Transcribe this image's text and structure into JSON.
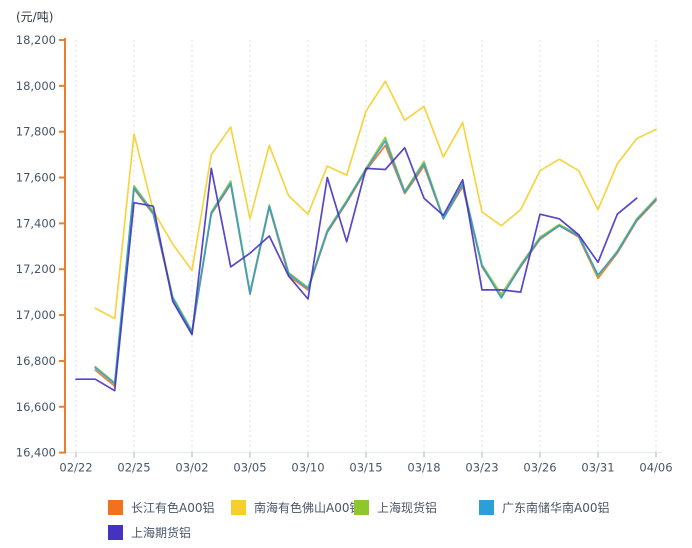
{
  "chart_data": {
    "type": "line",
    "unit_label": "(元/吨)",
    "ylim": [
      16400,
      18200
    ],
    "y_ticks": [
      16400,
      16600,
      16800,
      17000,
      17200,
      17400,
      17600,
      17800,
      18000,
      18200
    ],
    "y_tick_labels": [
      "16,400",
      "16,600",
      "16,800",
      "17,000",
      "17,200",
      "17,400",
      "17,600",
      "17,800",
      "18,000",
      "18,200"
    ],
    "x": [
      "02/22",
      "02/23",
      "02/24",
      "02/25",
      "02/26",
      "03/01",
      "03/02",
      "03/03",
      "03/04",
      "03/05",
      "03/08",
      "03/09",
      "03/10",
      "03/11",
      "03/12",
      "03/15",
      "03/16",
      "03/17",
      "03/18",
      "03/19",
      "03/22",
      "03/23",
      "03/24",
      "03/25",
      "03/26",
      "03/29",
      "03/30",
      "03/31",
      "04/01",
      "04/02",
      "04/06"
    ],
    "x_shown_tick_indices": [
      0,
      3,
      6,
      9,
      12,
      15,
      18,
      21,
      24,
      27,
      30
    ],
    "x_shown_tick_labels": [
      "02/22",
      "02/25",
      "03/02",
      "03/05",
      "03/10",
      "03/15",
      "03/18",
      "03/23",
      "03/26",
      "03/31",
      "04/06"
    ],
    "grid": "vertical-dashed",
    "legend_position": "bottom",
    "series": [
      {
        "name": "长江有色A00铝",
        "color": "#f2711d",
        "values": [
          null,
          16760,
          16690,
          17550,
          17440,
          17070,
          16920,
          17440,
          17570,
          17090,
          17470,
          17170,
          17110,
          17360,
          17490,
          17630,
          17740,
          17530,
          17650,
          17420,
          17560,
          17210,
          17080,
          17210,
          17330,
          17390,
          17340,
          17160,
          17270,
          17410,
          17500
        ]
      },
      {
        "name": "南海有色佛山A00铝",
        "color": "#f6cf2e",
        "values": [
          null,
          17030,
          16985,
          17790,
          17455,
          17310,
          17195,
          17700,
          17820,
          17420,
          17740,
          17520,
          17440,
          17650,
          17610,
          17890,
          18020,
          17850,
          17910,
          17690,
          17840,
          17450,
          17390,
          17460,
          17630,
          17680,
          17630,
          17460,
          17660,
          17770,
          17810
        ]
      },
      {
        "name": "上海现货铝",
        "color": "#8fc62b",
        "values": [
          null,
          16775,
          16705,
          17565,
          17450,
          17080,
          16930,
          17450,
          17585,
          17100,
          17480,
          17185,
          17120,
          17370,
          17500,
          17640,
          17775,
          17540,
          17670,
          17425,
          17575,
          17220,
          17090,
          17220,
          17340,
          17395,
          17350,
          17170,
          17280,
          17420,
          17510
        ]
      },
      {
        "name": "广东南储华南A00铝",
        "color": "#2b9fd8",
        "values": [
          null,
          16770,
          16700,
          17555,
          17445,
          17075,
          16925,
          17445,
          17575,
          17095,
          17475,
          17180,
          17115,
          17365,
          17495,
          17635,
          17760,
          17535,
          17660,
          17420,
          17570,
          17215,
          17075,
          17215,
          17335,
          17390,
          17345,
          17175,
          17275,
          17415,
          17505
        ]
      },
      {
        "name": "上海期货铝",
        "color": "#4433c2",
        "values": [
          16720,
          16720,
          16670,
          17490,
          17475,
          17060,
          16915,
          17640,
          17210,
          17270,
          17345,
          17170,
          17070,
          17600,
          17320,
          17640,
          17635,
          17730,
          17510,
          17435,
          17590,
          17110,
          17110,
          17100,
          17440,
          17420,
          17350,
          17230,
          17440,
          17510,
          null
        ]
      }
    ],
    "style": {
      "y_axis_color": "#e87f2f",
      "grid_color": "#d7e0f0",
      "bottom_axis_color": "#e3e8ee",
      "x_tick_color": "#adb5bf",
      "tick_label_color": "#475569",
      "line_opacity": 0.9
    }
  }
}
